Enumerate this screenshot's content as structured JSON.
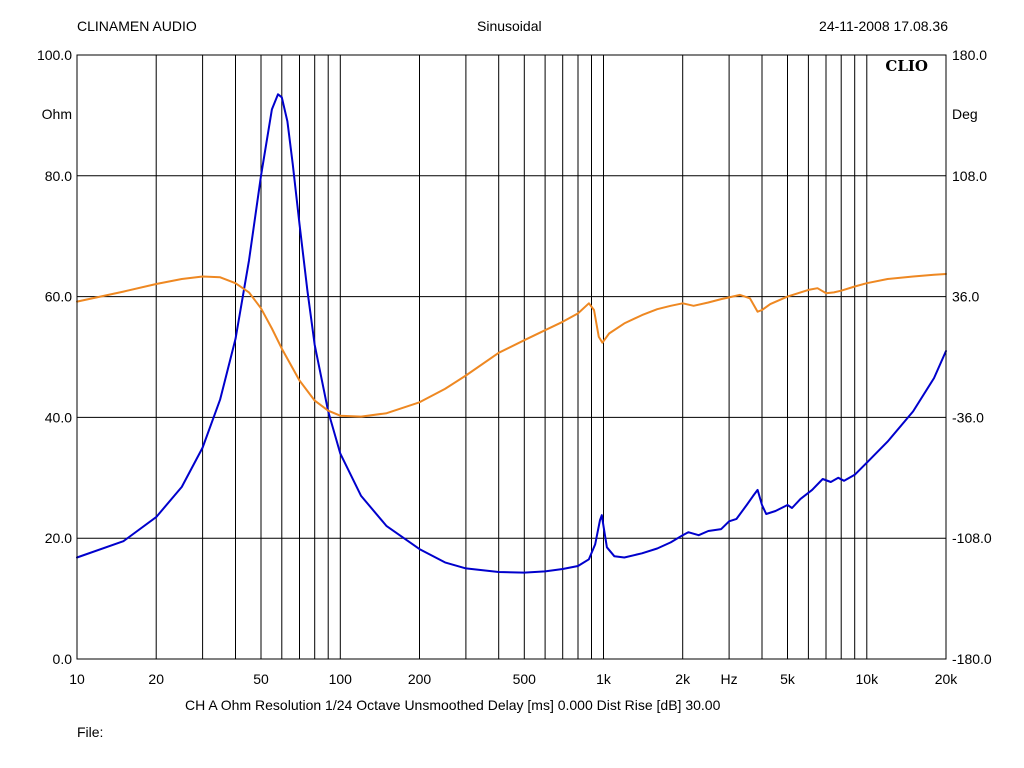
{
  "header": {
    "left": "CLINAMEN AUDIO",
    "center": "Sinusoidal",
    "right": "24-11-2008 17.08.36"
  },
  "brand": "CLIO",
  "footer": {
    "params": "CH A   Ohm   Resolution 1/24 Octave   Unsmoothed   Delay [ms] 0.000   Dist Rise [dB] 30.00",
    "file": "File:"
  },
  "chart_data": {
    "type": "line",
    "xscale": "log",
    "xlim": [
      10,
      20000
    ],
    "xlabel": "Hz",
    "xticks": [
      {
        "value": 10,
        "label": "10"
      },
      {
        "value": 20,
        "label": "20"
      },
      {
        "value": 50,
        "label": "50"
      },
      {
        "value": 100,
        "label": "100"
      },
      {
        "value": 200,
        "label": "200"
      },
      {
        "value": 500,
        "label": "500"
      },
      {
        "value": 1000,
        "label": "1k"
      },
      {
        "value": 2000,
        "label": "2k"
      },
      {
        "value": 5000,
        "label": "5k"
      },
      {
        "value": 10000,
        "label": "10k"
      },
      {
        "value": 20000,
        "label": "20k"
      }
    ],
    "y_left": {
      "label": "Ohm",
      "lim": [
        0,
        100
      ],
      "ticks": [
        "0.0",
        "20.0",
        "40.0",
        "60.0",
        "80.0",
        "100.0"
      ]
    },
    "y_right": {
      "label": "Deg",
      "lim": [
        -180,
        180
      ],
      "ticks": [
        "-180.0",
        "-108.0",
        "-36.0",
        "36.0",
        "108.0",
        "180.0"
      ]
    },
    "grid": true,
    "series": [
      {
        "axis": "left",
        "color": "#0000cc",
        "points": [
          [
            10,
            16.8
          ],
          [
            15,
            19.5
          ],
          [
            20,
            23.5
          ],
          [
            25,
            28.5
          ],
          [
            30,
            35
          ],
          [
            35,
            43
          ],
          [
            40,
            53
          ],
          [
            45,
            66
          ],
          [
            50,
            80
          ],
          [
            55,
            91
          ],
          [
            58,
            93.5
          ],
          [
            60,
            93
          ],
          [
            63,
            89
          ],
          [
            66,
            82
          ],
          [
            70,
            72
          ],
          [
            75,
            61
          ],
          [
            80,
            52
          ],
          [
            90,
            41
          ],
          [
            100,
            34
          ],
          [
            120,
            27
          ],
          [
            150,
            22
          ],
          [
            200,
            18.2
          ],
          [
            250,
            16
          ],
          [
            300,
            15
          ],
          [
            400,
            14.4
          ],
          [
            500,
            14.3
          ],
          [
            600,
            14.5
          ],
          [
            700,
            14.9
          ],
          [
            800,
            15.4
          ],
          [
            880,
            16.5
          ],
          [
            930,
            19
          ],
          [
            970,
            23
          ],
          [
            985,
            23.8
          ],
          [
            1000,
            22
          ],
          [
            1030,
            18.5
          ],
          [
            1100,
            17
          ],
          [
            1200,
            16.8
          ],
          [
            1400,
            17.5
          ],
          [
            1600,
            18.3
          ],
          [
            1800,
            19.3
          ],
          [
            2000,
            20.5
          ],
          [
            2100,
            21
          ],
          [
            2300,
            20.5
          ],
          [
            2500,
            21.2
          ],
          [
            2800,
            21.5
          ],
          [
            3000,
            22.8
          ],
          [
            3200,
            23.2
          ],
          [
            3500,
            25.5
          ],
          [
            3700,
            27
          ],
          [
            3850,
            28
          ],
          [
            4000,
            25.5
          ],
          [
            4150,
            24
          ],
          [
            4500,
            24.5
          ],
          [
            5000,
            25.5
          ],
          [
            5200,
            25
          ],
          [
            5600,
            26.5
          ],
          [
            6200,
            28
          ],
          [
            6800,
            29.8
          ],
          [
            7300,
            29.3
          ],
          [
            7800,
            30
          ],
          [
            8200,
            29.5
          ],
          [
            9000,
            30.5
          ],
          [
            10000,
            32.5
          ],
          [
            12000,
            36
          ],
          [
            15000,
            41
          ],
          [
            18000,
            46.5
          ],
          [
            20000,
            51
          ]
        ]
      },
      {
        "axis": "right",
        "color": "#ee8822",
        "points": [
          [
            10,
            33
          ],
          [
            15,
            39
          ],
          [
            20,
            43.5
          ],
          [
            25,
            46.5
          ],
          [
            30,
            48
          ],
          [
            35,
            47.5
          ],
          [
            40,
            44
          ],
          [
            45,
            38.5
          ],
          [
            50,
            29
          ],
          [
            55,
            17
          ],
          [
            60,
            5
          ],
          [
            70,
            -14
          ],
          [
            80,
            -26
          ],
          [
            90,
            -32
          ],
          [
            100,
            -35
          ],
          [
            120,
            -35.5
          ],
          [
            150,
            -33.5
          ],
          [
            200,
            -27
          ],
          [
            250,
            -19
          ],
          [
            300,
            -11
          ],
          [
            400,
            2.5
          ],
          [
            500,
            10
          ],
          [
            600,
            16
          ],
          [
            700,
            21
          ],
          [
            800,
            26
          ],
          [
            880,
            32
          ],
          [
            920,
            28
          ],
          [
            960,
            12
          ],
          [
            990,
            8.5
          ],
          [
            1050,
            14
          ],
          [
            1200,
            20
          ],
          [
            1400,
            25
          ],
          [
            1600,
            28.5
          ],
          [
            1800,
            30.5
          ],
          [
            2000,
            32
          ],
          [
            2200,
            30.5
          ],
          [
            2500,
            32.5
          ],
          [
            2800,
            34.5
          ],
          [
            3000,
            35.5
          ],
          [
            3300,
            37
          ],
          [
            3600,
            35
          ],
          [
            3850,
            27
          ],
          [
            4000,
            28
          ],
          [
            4300,
            31.5
          ],
          [
            5000,
            36
          ],
          [
            6000,
            40
          ],
          [
            6500,
            41
          ],
          [
            7000,
            38
          ],
          [
            7500,
            38.5
          ],
          [
            8000,
            39.5
          ],
          [
            9000,
            42
          ],
          [
            10000,
            44
          ],
          [
            12000,
            46.5
          ],
          [
            15000,
            48
          ],
          [
            18000,
            49
          ],
          [
            20000,
            49.5
          ]
        ]
      }
    ]
  }
}
